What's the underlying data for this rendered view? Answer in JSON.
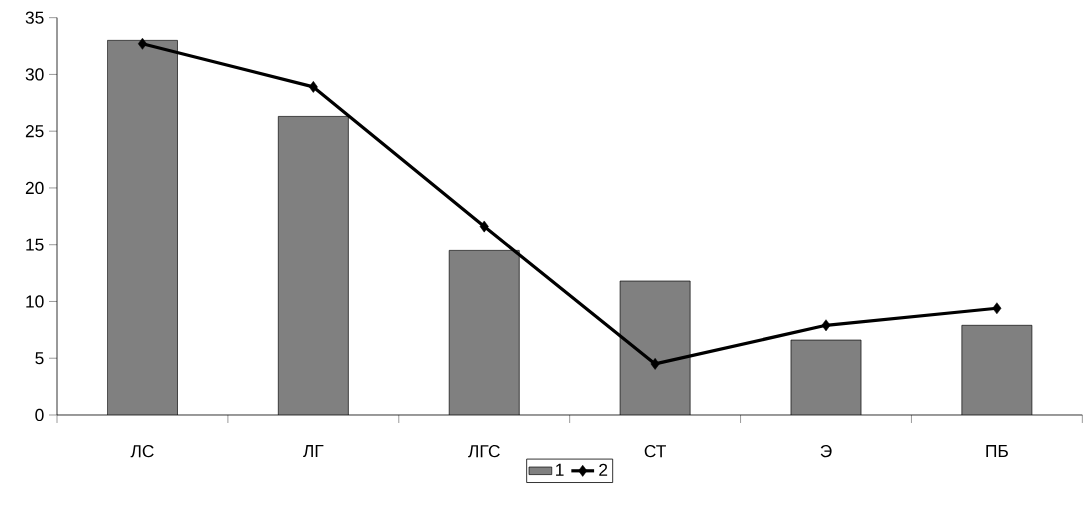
{
  "chart_data": {
    "type": "bar",
    "categories": [
      "ЛС",
      "ЛГ",
      "ЛГС",
      "СТ",
      "Э",
      "ПБ"
    ],
    "series": [
      {
        "name": "1",
        "color": "#808080",
        "values": [
          33,
          26.3,
          14.5,
          11.8,
          6.6,
          7.9
        ]
      },
      {
        "name": "2",
        "type": "line",
        "color": "#000000",
        "marker": "diamond",
        "values": [
          32.7,
          28.9,
          16.6,
          4.5,
          7.9,
          9.4
        ]
      }
    ],
    "ylim": [
      0,
      35
    ],
    "yticks": [
      0,
      5,
      10,
      15,
      20,
      25,
      30,
      35
    ],
    "legend": "bottom"
  }
}
